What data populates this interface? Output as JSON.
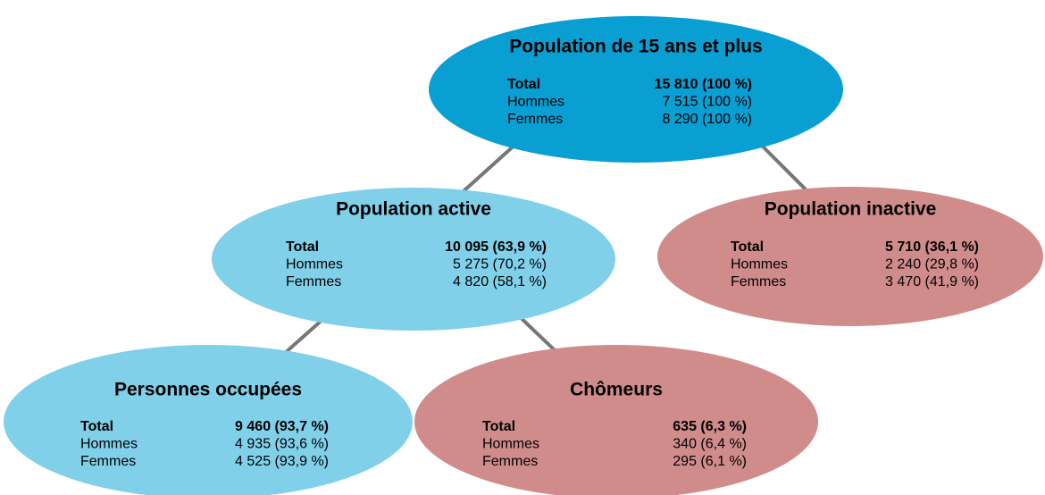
{
  "nodes": [
    {
      "title": "Population de 15 ans et plus",
      "rows": [
        {
          "label": "Total",
          "value": "15 810 (100 %)"
        },
        {
          "label": "Hommes",
          "value": "7 515 (100 %)"
        },
        {
          "label": "Femmes",
          "value": "8 290 (100 %)"
        }
      ]
    },
    {
      "title": "Population active",
      "rows": [
        {
          "label": "Total",
          "value": "10 095 (63,9 %)"
        },
        {
          "label": "Hommes",
          "value": "5 275 (70,2 %)"
        },
        {
          "label": "Femmes",
          "value": "4 820 (58,1 %)"
        }
      ]
    },
    {
      "title": "Population inactive",
      "rows": [
        {
          "label": "Total",
          "value": "5 710 (36,1 %)"
        },
        {
          "label": "Hommes",
          "value": "2 240 (29,8 %)"
        },
        {
          "label": "Femmes",
          "value": "3 470 (41,9 %)"
        }
      ]
    },
    {
      "title": "Personnes occupées",
      "rows": [
        {
          "label": "Total",
          "value": "9 460 (93,7 %)"
        },
        {
          "label": "Hommes",
          "value": "4 935 (93,6 %)"
        },
        {
          "label": "Femmes",
          "value": "4 525 (93,9 %)"
        }
      ]
    },
    {
      "title": "Chômeurs",
      "rows": [
        {
          "label": "Total",
          "value": "635 (6,3 %)"
        },
        {
          "label": "Hommes",
          "value": "340 (6,4 %)"
        },
        {
          "label": "Femmes",
          "value": "295 (6,1 %)"
        }
      ]
    }
  ]
}
